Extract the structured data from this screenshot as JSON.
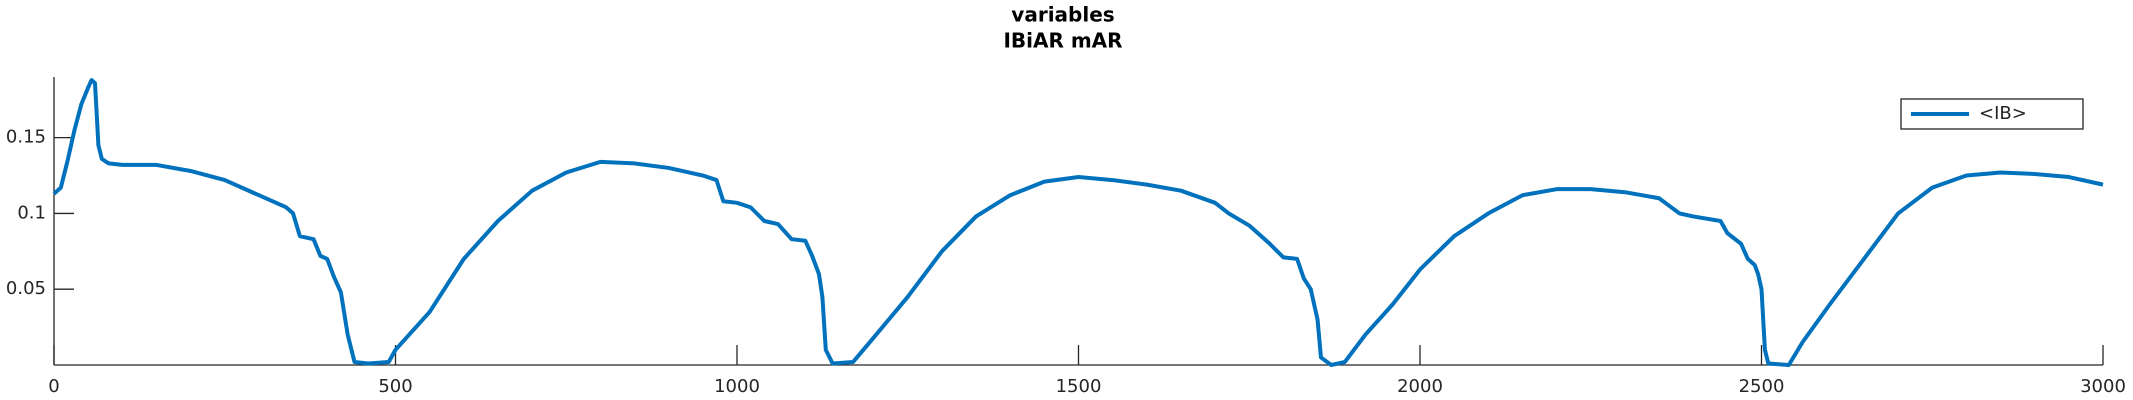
{
  "chart_data": {
    "type": "line",
    "title": "variables",
    "subtitle": "IBiAR mAR",
    "x": [
      0,
      10,
      20,
      30,
      40,
      50,
      55,
      60,
      62,
      65,
      70,
      80,
      100,
      120,
      150,
      200,
      250,
      300,
      340,
      350,
      360,
      380,
      390,
      400,
      410,
      420,
      430,
      440,
      460,
      490,
      500,
      550,
      600,
      650,
      700,
      750,
      800,
      850,
      900,
      950,
      970,
      980,
      1000,
      1020,
      1040,
      1060,
      1080,
      1100,
      1110,
      1120,
      1125,
      1130,
      1140,
      1170,
      1200,
      1250,
      1300,
      1350,
      1400,
      1450,
      1500,
      1550,
      1600,
      1650,
      1700,
      1720,
      1750,
      1780,
      1800,
      1820,
      1830,
      1840,
      1850,
      1855,
      1870,
      1890,
      1920,
      1960,
      2000,
      2050,
      2100,
      2150,
      2200,
      2250,
      2300,
      2350,
      2380,
      2400,
      2440,
      2450,
      2470,
      2480,
      2490,
      2495,
      2500,
      2505,
      2510,
      2540,
      2560,
      2600,
      2650,
      2700,
      2750,
      2800,
      2850,
      2900,
      2950,
      3000
    ],
    "series": [
      {
        "name": "<IB>",
        "color": "#0072bd",
        "values": [
          0.113,
          0.117,
          0.135,
          0.155,
          0.172,
          0.183,
          0.188,
          0.186,
          0.17,
          0.145,
          0.136,
          0.133,
          0.132,
          0.132,
          0.132,
          0.128,
          0.122,
          0.112,
          0.104,
          0.1,
          0.085,
          0.083,
          0.072,
          0.07,
          0.058,
          0.048,
          0.02,
          0.002,
          0.001,
          0.002,
          0.01,
          0.035,
          0.07,
          0.095,
          0.115,
          0.127,
          0.134,
          0.133,
          0.13,
          0.125,
          0.122,
          0.108,
          0.107,
          0.104,
          0.095,
          0.093,
          0.083,
          0.082,
          0.072,
          0.06,
          0.045,
          0.01,
          0.001,
          0.002,
          0.018,
          0.045,
          0.075,
          0.098,
          0.112,
          0.121,
          0.124,
          0.122,
          0.119,
          0.115,
          0.107,
          0.1,
          0.092,
          0.08,
          0.071,
          0.07,
          0.057,
          0.05,
          0.03,
          0.005,
          0.0,
          0.002,
          0.02,
          0.04,
          0.063,
          0.085,
          0.1,
          0.112,
          0.116,
          0.116,
          0.114,
          0.11,
          0.1,
          0.098,
          0.095,
          0.087,
          0.08,
          0.07,
          0.066,
          0.06,
          0.05,
          0.01,
          0.001,
          0.0,
          0.015,
          0.04,
          0.07,
          0.1,
          0.117,
          0.125,
          0.127,
          0.126,
          0.124,
          0.119
        ]
      }
    ],
    "xlim": [
      0,
      3000
    ],
    "xticks": [
      0,
      500,
      1000,
      1500,
      2000,
      2500,
      3000
    ],
    "ylim": [
      0,
      0.19
    ],
    "yticks": [
      0.05,
      0.1,
      0.15
    ],
    "legend": "northeast"
  }
}
